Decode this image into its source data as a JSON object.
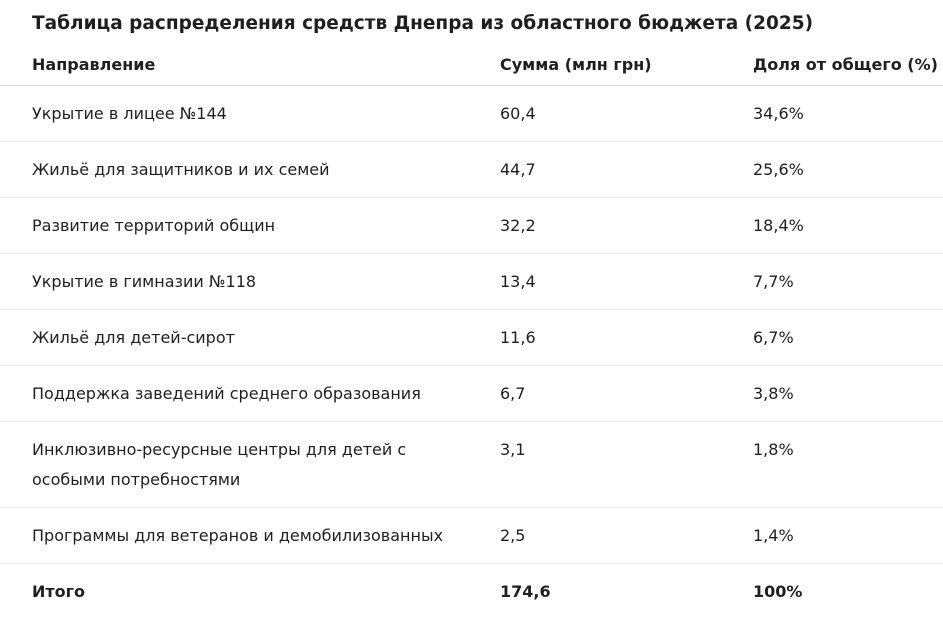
{
  "title": "Таблица распределения средств Днепра из областного бюджета (2025)",
  "table": {
    "headers": [
      "Направление",
      "Сумма (млн грн)",
      "Доля от общего (%)"
    ],
    "rows": [
      {
        "direction": "Укрытие в лицее №144",
        "amount": "60,4",
        "share": "34,6%"
      },
      {
        "direction": "Жильё для защитников и их семей",
        "amount": "44,7",
        "share": "25,6%"
      },
      {
        "direction": "Развитие территорий общин",
        "amount": "32,2",
        "share": "18,4%"
      },
      {
        "direction": "Укрытие в гимназии №118",
        "amount": "13,4",
        "share": "7,7%"
      },
      {
        "direction": "Жильё для детей-сирот",
        "amount": "11,6",
        "share": "6,7%"
      },
      {
        "direction": "Поддержка заведений среднего образования",
        "amount": "6,7",
        "share": "3,8%"
      },
      {
        "direction": "Инклюзивно-ресурсные центры для детей с особыми потребностями",
        "amount": "3,1",
        "share": "1,8%"
      },
      {
        "direction": "Программы для ветеранов и демобилизованных",
        "amount": "2,5",
        "share": "1,4%"
      }
    ],
    "total": {
      "direction": "Итого",
      "amount": "174,6",
      "share": "100%"
    }
  }
}
